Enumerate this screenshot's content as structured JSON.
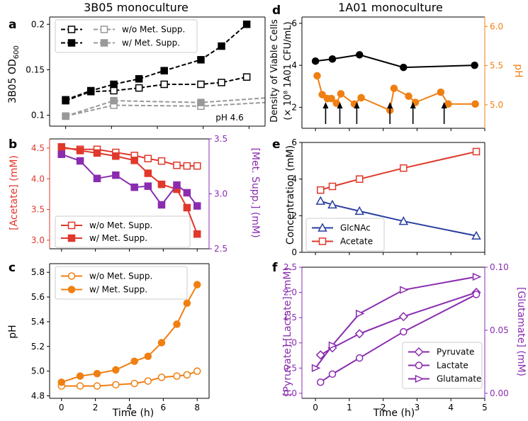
{
  "chart_data": [
    {
      "panel": "a",
      "type": "line",
      "title": "3B05 monoculture",
      "ylabel": "3B05 OD600",
      "ylabel_main": "3B05 OD",
      "ylabel_sub": "600",
      "xlim": [
        -0.7,
        8.7
      ],
      "ylim": [
        0.088,
        0.208
      ],
      "yticks": [
        0.1,
        0.15,
        0.2
      ],
      "ytick_labels": [
        "0.1",
        "0.15",
        "0.2"
      ],
      "annotation": "pH 4.6",
      "legend_position": "upper-left",
      "series": [
        {
          "name": "w/o Met. Supp.",
          "color": "#000000",
          "marker": "square-open",
          "dash": true,
          "x": [
            0,
            1.1,
            2.1,
            3.2,
            4.3,
            5.9,
            6.8,
            7.9
          ],
          "y": [
            0.116,
            0.126,
            0.127,
            0.13,
            0.134,
            0.134,
            0.136,
            0.142
          ]
        },
        {
          "name": "w/ Met. Supp.",
          "color": "#000000",
          "marker": "square-filled",
          "dash": true,
          "x": [
            0,
            1.1,
            2.1,
            3.2,
            4.3,
            5.9,
            6.8,
            7.9
          ],
          "y": [
            0.117,
            0.127,
            0.134,
            0.14,
            0.149,
            0.161,
            0.176,
            0.2
          ]
        },
        {
          "name": "w/o Met. Supp.",
          "color": "#999999",
          "marker": "square-open",
          "dash": true,
          "x": [
            0,
            2.1,
            5.9,
            8.7
          ],
          "y": [
            0.099,
            0.111,
            0.11,
            0.114
          ]
        },
        {
          "name": "w/ Met. Supp.",
          "color": "#999999",
          "marker": "square-filled",
          "dash": true,
          "x": [
            0,
            2.1,
            5.9,
            8.7
          ],
          "y": [
            0.099,
            0.116,
            0.114,
            0.119
          ]
        }
      ]
    },
    {
      "panel": "b",
      "type": "line",
      "ylabel_left": "[Acetate] (mM)",
      "ylabel_right": "[Met. Supp.] (mM)",
      "xlim": [
        -0.7,
        8.7
      ],
      "ylim_left": [
        2.86,
        4.65
      ],
      "ylim_right": [
        2.5,
        3.5
      ],
      "yticks_left": [
        3.0,
        3.5,
        4.0,
        4.5
      ],
      "ytick_labels_left": [
        "3.0",
        "3.5",
        "4.0",
        "4.5"
      ],
      "yticks_right": [
        2.5,
        3.0,
        3.5
      ],
      "ytick_labels_right": [
        "2.5",
        "3.0",
        "3.5"
      ],
      "legend_position": "lower-left",
      "series": [
        {
          "name": "w/o Met. Supp.",
          "color": "#e0382b",
          "marker": "square-open",
          "axis": "left",
          "x": [
            0,
            1.1,
            2.1,
            3.2,
            4.3,
            5.1,
            5.9,
            6.8,
            7.4,
            8.0
          ],
          "y": [
            4.5,
            4.48,
            4.48,
            4.43,
            4.38,
            4.33,
            4.29,
            4.22,
            4.21,
            4.21
          ]
        },
        {
          "name": "w/ Met. Supp.",
          "color": "#e0382b",
          "marker": "square-filled",
          "axis": "left",
          "x": [
            0,
            1.1,
            2.1,
            3.2,
            4.3,
            5.1,
            5.9,
            6.8,
            7.4,
            8.0
          ],
          "y": [
            4.52,
            4.46,
            4.42,
            4.37,
            4.3,
            4.09,
            3.91,
            3.83,
            3.53,
            3.1
          ]
        },
        {
          "name": "Met. Supp.",
          "color": "#8a2cb0",
          "marker": "square-filled",
          "axis": "right",
          "x": [
            0,
            1.1,
            2.1,
            3.2,
            4.3,
            5.1,
            5.9,
            6.8,
            7.4,
            8.0
          ],
          "y": [
            3.36,
            3.3,
            3.14,
            3.17,
            3.06,
            3.07,
            2.9,
            3.08,
            3.01,
            2.89
          ]
        }
      ]
    },
    {
      "panel": "c",
      "type": "line",
      "ylabel": "pH",
      "xlabel": "Time (h)",
      "xlim": [
        -0.7,
        8.7
      ],
      "ylim": [
        4.78,
        5.87
      ],
      "xticks": [
        0,
        2,
        4,
        6,
        8
      ],
      "xtick_labels": [
        "0",
        "2",
        "4",
        "6",
        "8"
      ],
      "yticks": [
        4.8,
        5.0,
        5.2,
        5.4,
        5.6,
        5.8
      ],
      "ytick_labels": [
        "4.8",
        "5.0",
        "5.2",
        "5.4",
        "5.6",
        "5.8"
      ],
      "legend_position": "upper-left",
      "series": [
        {
          "name": "w/o Met. Supp.",
          "color": "#f07f12",
          "marker": "circle-open",
          "x": [
            0,
            1.1,
            2.1,
            3.2,
            4.3,
            5.1,
            5.9,
            6.8,
            7.4,
            8.0
          ],
          "y": [
            4.88,
            4.88,
            4.88,
            4.89,
            4.9,
            4.92,
            4.95,
            4.96,
            4.97,
            5.0
          ]
        },
        {
          "name": "w/ Met. Supp.",
          "color": "#f07f12",
          "marker": "circle-filled",
          "x": [
            0,
            1.1,
            2.1,
            3.2,
            4.3,
            5.1,
            5.9,
            6.8,
            7.4,
            8.0
          ],
          "y": [
            4.91,
            4.96,
            4.98,
            5.01,
            5.08,
            5.12,
            5.23,
            5.38,
            5.55,
            5.7
          ]
        }
      ]
    },
    {
      "panel": "d",
      "type": "line",
      "title": "1A01 monoculture",
      "ylabel_left_line1": "Density of Viable Cells",
      "ylabel_left_line2": "(× 10⁸ 1A01 CFU/mL)",
      "ylabel_right": "pH",
      "xlim": [
        -0.4,
        5.0
      ],
      "ylim_left": [
        1.0,
        6.3
      ],
      "ylim_right": [
        4.7,
        6.12
      ],
      "yticks_left": [
        2,
        4,
        6
      ],
      "ytick_labels_left": [
        "2",
        "4",
        "6"
      ],
      "yticks_right": [
        5.0,
        5.5,
        6.0
      ],
      "ytick_labels_right": [
        "5.0",
        "5.5",
        "6.0"
      ],
      "series": [
        {
          "name": "Density of Viable Cells",
          "color": "#000000",
          "marker": "circle-filled",
          "axis": "left",
          "x": [
            0,
            0.5,
            1.3,
            2.6,
            4.7
          ],
          "y": [
            4.2,
            4.3,
            4.5,
            3.9,
            4.0
          ]
        },
        {
          "name": "pH",
          "color": "#f07f12",
          "marker": "circle-filled",
          "axis": "right",
          "x": [
            0.05,
            0.2,
            0.35,
            0.47,
            0.62,
            0.75,
            1.15,
            1.35,
            2.2,
            2.32,
            2.75,
            2.95,
            3.7,
            3.92,
            4.72
          ],
          "y": [
            5.37,
            5.13,
            5.08,
            5.08,
            5.02,
            5.14,
            5.01,
            5.09,
            4.93,
            5.21,
            5.11,
            5.03,
            5.16,
            5.01,
            5.01
          ]
        }
      ],
      "arrows_x": [
        0.3,
        0.72,
        1.22,
        2.2,
        2.88,
        3.8
      ]
    },
    {
      "panel": "e",
      "type": "line",
      "ylabel": "Concentration (mM)",
      "xlim": [
        -0.4,
        5.0
      ],
      "ylim": [
        0,
        6
      ],
      "yticks": [
        0,
        2,
        4,
        6
      ],
      "ytick_labels": [
        "0",
        "2",
        "4",
        "6"
      ],
      "legend_position": "lower-left",
      "series": [
        {
          "name": "GlcNAc",
          "color": "#2a3f9e",
          "marker": "triangle-open",
          "x": [
            0.15,
            0.5,
            1.3,
            2.6,
            4.75
          ],
          "y": [
            2.8,
            2.6,
            2.25,
            1.7,
            0.9
          ]
        },
        {
          "name": "Acetate",
          "color": "#e0382b",
          "marker": "square-open",
          "x": [
            0.15,
            0.5,
            1.3,
            2.6,
            4.75
          ],
          "y": [
            3.4,
            3.6,
            4.0,
            4.6,
            5.5
          ]
        }
      ]
    },
    {
      "panel": "f",
      "type": "line",
      "ylabel_left": "[Pyruvate],[Lactate] (mM)",
      "ylabel_right": "[Glutamate] (mM)",
      "xlabel": "Time (h)",
      "xlim": [
        -0.4,
        5.0
      ],
      "ylim_left": [
        -0.1,
        2.5
      ],
      "ylim_right": [
        0,
        0.1
      ],
      "xticks": [
        0,
        1,
        2,
        3,
        4,
        5
      ],
      "xtick_labels": [
        "0",
        "1",
        "2",
        "3",
        "4",
        "5"
      ],
      "yticks_left": [
        0.0,
        0.5,
        1.0,
        1.5,
        2.0,
        2.5
      ],
      "ytick_labels_left": [
        "0.0",
        "0.5",
        "1.0",
        "1.5",
        "2.0",
        "2.5"
      ],
      "yticks_right": [
        0.0,
        0.05,
        0.1
      ],
      "ytick_labels_right": [
        "0.00",
        "0.05",
        "0.10"
      ],
      "legend_position": "lower-right",
      "series": [
        {
          "name": "Pyruvate",
          "color": "#8a2cb0",
          "marker": "diamond-open",
          "axis": "left",
          "x": [
            0.15,
            0.5,
            1.3,
            2.6,
            4.75
          ],
          "y": [
            0.76,
            0.9,
            1.18,
            1.52,
            2.0
          ]
        },
        {
          "name": "Lactate",
          "color": "#8a2cb0",
          "marker": "circle-open",
          "axis": "left",
          "x": [
            0.15,
            0.5,
            1.3,
            2.6,
            4.75
          ],
          "y": [
            0.22,
            0.38,
            0.7,
            1.22,
            1.96
          ]
        },
        {
          "name": "Glutamate",
          "color": "#8a2cb0",
          "marker": "triangle-right-open",
          "axis": "left",
          "x": [
            0.0,
            0.5,
            1.3,
            2.6,
            4.75
          ],
          "y": [
            0.5,
            0.95,
            1.58,
            2.05,
            2.31
          ]
        }
      ]
    }
  ],
  "panel_letters": [
    "a",
    "b",
    "c",
    "d",
    "e",
    "f"
  ],
  "colors": {
    "red": "#e0382b",
    "purple": "#8a2cb0",
    "orange": "#f07f12",
    "blue": "#2a3f9e",
    "gray": "#999999",
    "black": "#000000"
  }
}
